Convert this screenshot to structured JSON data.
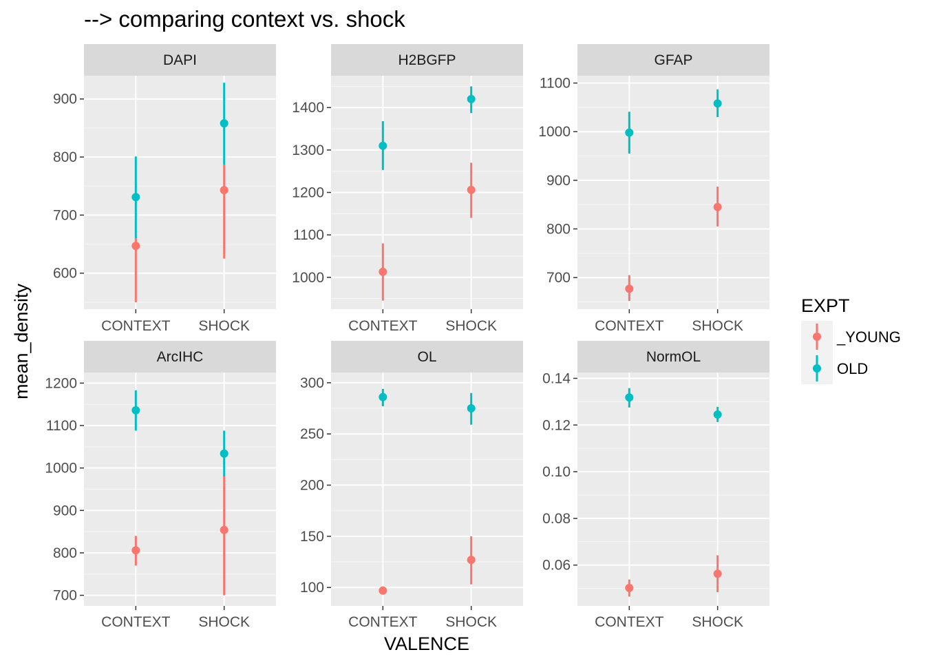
{
  "chart_data": {
    "type": "scatter",
    "subtype": "pointrange-facets",
    "title": "--> comparing context vs. shock",
    "xlabel": "VALENCE",
    "ylabel": "mean_density",
    "categories": [
      "CONTEXT",
      "SHOCK"
    ],
    "legend": {
      "title": "EXPT",
      "placement": "right",
      "entries": [
        {
          "name": "_YOUNG",
          "color": "#F8766D"
        },
        {
          "name": "OLD",
          "color": "#00BFC4"
        }
      ]
    },
    "grid": true,
    "facets": [
      {
        "name": "DAPI",
        "ylim": [
          538,
          940
        ],
        "yticks": [
          600,
          700,
          800,
          900
        ],
        "series": [
          {
            "name": "_YOUNG",
            "values": [
              647,
              743
            ],
            "lower": [
              550,
              625
            ],
            "upper": [
              660,
              787
            ]
          },
          {
            "name": "OLD",
            "values": [
              731,
              858
            ],
            "lower": [
              660,
              787
            ],
            "upper": [
              801,
              928
            ]
          }
        ]
      },
      {
        "name": "H2BGFP",
        "ylim": [
          925,
          1475
        ],
        "yticks": [
          1000,
          1100,
          1200,
          1300,
          1400
        ],
        "series": [
          {
            "name": "_YOUNG",
            "values": [
              1013,
              1206
            ],
            "lower": [
              945,
              1140
            ],
            "upper": [
              1080,
              1270
            ]
          },
          {
            "name": "OLD",
            "values": [
              1310,
              1420
            ],
            "lower": [
              1253,
              1387
            ],
            "upper": [
              1368,
              1450
            ]
          }
        ]
      },
      {
        "name": "GFAP",
        "ylim": [
          635,
          1115
        ],
        "yticks": [
          700,
          800,
          900,
          1000,
          1100
        ],
        "series": [
          {
            "name": "_YOUNG",
            "values": [
              677,
              845
            ],
            "lower": [
              652,
              805
            ],
            "upper": [
              705,
              887
            ]
          },
          {
            "name": "OLD",
            "values": [
              998,
              1058
            ],
            "lower": [
              955,
              1030
            ],
            "upper": [
              1041,
              1087
            ]
          }
        ]
      },
      {
        "name": "ArcIHC",
        "ylim": [
          675,
          1225
        ],
        "yticks": [
          700,
          800,
          900,
          1000,
          1100,
          1200
        ],
        "series": [
          {
            "name": "_YOUNG",
            "values": [
              806,
              854
            ],
            "lower": [
              770,
              700
            ],
            "upper": [
              840,
              980
            ]
          },
          {
            "name": "OLD",
            "values": [
              1136,
              1034
            ],
            "lower": [
              1088,
              980
            ],
            "upper": [
              1183,
              1088
            ]
          }
        ]
      },
      {
        "name": "OL",
        "ylim": [
          82,
          310
        ],
        "yticks": [
          100,
          150,
          200,
          250,
          300
        ],
        "series": [
          {
            "name": "_YOUNG",
            "values": [
              97,
              127
            ],
            "lower": [
              94,
              103
            ],
            "upper": [
              101,
              150
            ]
          },
          {
            "name": "OLD",
            "values": [
              286,
              275
            ],
            "lower": [
              277,
              259
            ],
            "upper": [
              294,
              290
            ]
          }
        ]
      },
      {
        "name": "NormOL",
        "ylim": [
          0.0425,
          0.1425
        ],
        "yticks": [
          0.06,
          0.08,
          0.1,
          0.12,
          0.14
        ],
        "ytick_labels": [
          "0.06",
          "0.08",
          "0.10",
          "0.12",
          "0.14"
        ],
        "series": [
          {
            "name": "_YOUNG",
            "values": [
              0.0502,
              0.0563
            ],
            "lower": [
              0.0465,
              0.0484
            ],
            "upper": [
              0.0538,
              0.0642
            ]
          },
          {
            "name": "OLD",
            "values": [
              0.1318,
              0.1245
            ],
            "lower": [
              0.1275,
              0.1213
            ],
            "upper": [
              0.1358,
              0.1278
            ]
          }
        ]
      }
    ]
  }
}
